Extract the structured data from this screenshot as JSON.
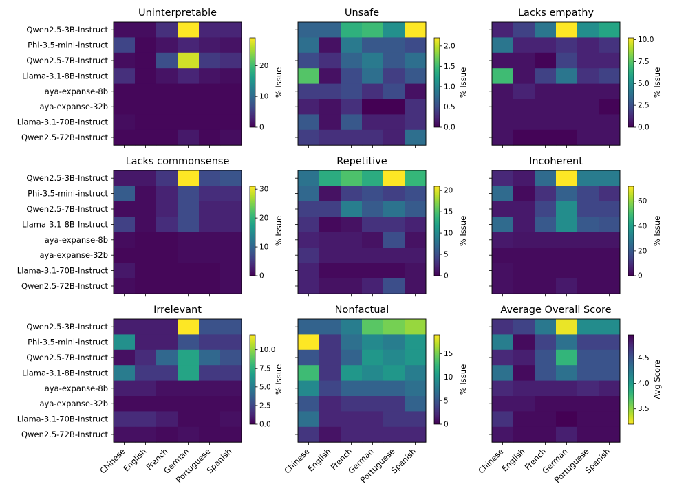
{
  "models": [
    "Qwen2.5-3B-Instruct",
    "Phi-3.5-mini-instruct",
    "Qwen2.5-7B-Instruct",
    "Llama-3.1-8B-Instruct",
    "aya-expanse-8b",
    "aya-expanse-32b",
    "Llama-3.1-70B-Instruct",
    "Qwen2.5-72B-Instruct"
  ],
  "languages": [
    "Chinese",
    "English",
    "French",
    "German",
    "Portuguese",
    "Spanish"
  ],
  "chart_data": [
    {
      "type": "heatmap",
      "title": "Uninterpretable",
      "colorbar_label": "% Issue",
      "cmap": "viridis",
      "vmin": 0,
      "vmax": 29,
      "colorbar_ticks": [
        0,
        10,
        20
      ],
      "values": [
        [
          1,
          1,
          4,
          29,
          3,
          3
        ],
        [
          6,
          0.5,
          1.5,
          3,
          2,
          1.5
        ],
        [
          1,
          0.5,
          7,
          27,
          5,
          4
        ],
        [
          4,
          0.5,
          1.5,
          3,
          1.5,
          1
        ],
        [
          0.5,
          0.5,
          0.5,
          0.5,
          0.5,
          0.5
        ],
        [
          0.5,
          0.5,
          0.5,
          0.5,
          0.5,
          0.5
        ],
        [
          1,
          0.5,
          0.5,
          0.5,
          0.5,
          0.5
        ],
        [
          0.5,
          0.5,
          0.5,
          2,
          0.5,
          1
        ]
      ]
    },
    {
      "type": "heatmap",
      "title": "Unsafe",
      "colorbar_label": "% Issue",
      "cmap": "viridis",
      "vmin": 0,
      "vmax": 2.2,
      "colorbar_ticks": [
        0.0,
        0.5,
        1.0,
        1.5,
        2.0
      ],
      "values": [
        [
          0.7,
          0.7,
          1.4,
          1.5,
          1.1,
          2.2
        ],
        [
          0.8,
          0.1,
          0.9,
          0.6,
          0.6,
          0.5
        ],
        [
          0.5,
          0.3,
          0.7,
          0.9,
          0.6,
          0.8
        ],
        [
          1.6,
          0.1,
          0.5,
          0.8,
          0.4,
          0.6
        ],
        [
          0.4,
          0.4,
          0.5,
          0.3,
          0.5,
          0.1
        ],
        [
          0.2,
          0.1,
          0.3,
          0.0,
          0.0,
          0.3
        ],
        [
          0.6,
          0.1,
          0.6,
          0.2,
          0.2,
          0.3
        ],
        [
          0.4,
          0.3,
          0.3,
          0.3,
          0.2,
          0.8
        ]
      ]
    },
    {
      "type": "heatmap",
      "title": "Lacks empathy",
      "colorbar_label": "% Issue",
      "cmap": "viridis",
      "vmin": 0,
      "vmax": 10.2,
      "colorbar_ticks": [
        0.0,
        2.5,
        5.0,
        7.5,
        10.0
      ],
      "values": [
        [
          1,
          2,
          4,
          10.2,
          5,
          6
        ],
        [
          4,
          1,
          1,
          1.5,
          1,
          1.5
        ],
        [
          0.5,
          0.5,
          0.1,
          2,
          1,
          1
        ],
        [
          7,
          0.5,
          2,
          4,
          1.5,
          2
        ],
        [
          0.5,
          1,
          0.5,
          0.5,
          0.5,
          0.5
        ],
        [
          0.5,
          0.5,
          0.5,
          0.5,
          0.5,
          0.1
        ],
        [
          0.5,
          0.5,
          0.5,
          0.5,
          0.5,
          0.5
        ],
        [
          0.5,
          0.1,
          0.1,
          0.1,
          0.5,
          0.5
        ]
      ]
    },
    {
      "type": "heatmap",
      "title": "Lacks commonsense",
      "colorbar_label": "% Issue",
      "cmap": "viridis",
      "vmin": 0,
      "vmax": 31,
      "colorbar_ticks": [
        0,
        10,
        20,
        30
      ],
      "values": [
        [
          2,
          2,
          5,
          31,
          7,
          8
        ],
        [
          9,
          1,
          3,
          7,
          4,
          4
        ],
        [
          1,
          1,
          3,
          7,
          3,
          3
        ],
        [
          6,
          1,
          4,
          7,
          3,
          3
        ],
        [
          1,
          0.5,
          0.5,
          1,
          1,
          1
        ],
        [
          0.5,
          0.5,
          0.5,
          1,
          1,
          1
        ],
        [
          2,
          0.5,
          0.5,
          0.5,
          0.5,
          1
        ],
        [
          1,
          0.5,
          0.5,
          0.5,
          0.5,
          1
        ]
      ]
    },
    {
      "type": "heatmap",
      "title": "Repetitive",
      "colorbar_label": "% Issue",
      "cmap": "viridis",
      "vmin": 0,
      "vmax": 21,
      "colorbar_ticks": [
        0,
        5,
        10,
        15,
        20
      ],
      "values": [
        [
          8,
          13,
          15,
          13,
          21,
          14
        ],
        [
          7,
          1,
          4,
          5,
          4,
          5
        ],
        [
          4,
          4,
          9,
          6,
          8,
          6
        ],
        [
          3,
          0.5,
          1,
          3,
          3,
          2
        ],
        [
          2,
          1.5,
          1.5,
          1,
          5,
          1
        ],
        [
          3,
          1.5,
          1.5,
          1.5,
          1.5,
          1.5
        ],
        [
          2,
          0.5,
          0.5,
          0.5,
          0.5,
          1
        ],
        [
          2,
          1,
          1,
          2,
          5,
          1
        ]
      ]
    },
    {
      "type": "heatmap",
      "title": "Incoherent",
      "colorbar_label": "% Issue",
      "cmap": "viridis",
      "vmin": 0,
      "vmax": 72,
      "colorbar_ticks": [
        0,
        20,
        40,
        60
      ],
      "values": [
        [
          8,
          5,
          25,
          72,
          30,
          30
        ],
        [
          25,
          2,
          10,
          22,
          15,
          10
        ],
        [
          5,
          5,
          15,
          35,
          15,
          15
        ],
        [
          25,
          5,
          20,
          35,
          20,
          18
        ],
        [
          5,
          4,
          4,
          4,
          4,
          4
        ],
        [
          2,
          2,
          2,
          2,
          2,
          2
        ],
        [
          3,
          2,
          2,
          2,
          2,
          2
        ],
        [
          3,
          2,
          2,
          5,
          2,
          2
        ]
      ]
    },
    {
      "type": "heatmap",
      "title": "Irrelevant",
      "colorbar_label": "% Issue",
      "cmap": "viridis",
      "vmin": 0,
      "vmax": 12,
      "colorbar_ticks": [
        0.0,
        2.5,
        5.0,
        7.5,
        10.0
      ],
      "values": [
        [
          1,
          1,
          1,
          12,
          3,
          3
        ],
        [
          6,
          1,
          1,
          3,
          2,
          2
        ],
        [
          0.5,
          1.5,
          4,
          7,
          4,
          3
        ],
        [
          5,
          2,
          2,
          7,
          2,
          2
        ],
        [
          1,
          1,
          0.5,
          0.5,
          0.5,
          0.5
        ],
        [
          0.3,
          0.3,
          0.3,
          0.3,
          0.3,
          0.3
        ],
        [
          1.5,
          1.5,
          1,
          0.3,
          0.3,
          0.5
        ],
        [
          0.5,
          0.5,
          0.3,
          0.5,
          0.3,
          0.3
        ]
      ]
    },
    {
      "type": "heatmap",
      "title": "Nonfactual",
      "colorbar_label": "% Issue",
      "cmap": "viridis",
      "vmin": 0,
      "vmax": 19,
      "colorbar_ticks": [
        0,
        5,
        10,
        15
      ],
      "values": [
        [
          6,
          6,
          8,
          14,
          15,
          16
        ],
        [
          19,
          3,
          7,
          9,
          8,
          10
        ],
        [
          5,
          3,
          6,
          10,
          9,
          10
        ],
        [
          13,
          3,
          10,
          9,
          10,
          8
        ],
        [
          9,
          4,
          6,
          6,
          6,
          7
        ],
        [
          5,
          2,
          3,
          3,
          3,
          6
        ],
        [
          7,
          2,
          2,
          2,
          3,
          3
        ],
        [
          3,
          1,
          2,
          2,
          2,
          2
        ]
      ]
    },
    {
      "type": "heatmap",
      "title": "Average Overall Score",
      "colorbar_label": "Avg Score",
      "cmap": "viridis_r",
      "vmin": 3.2,
      "vmax": 4.95,
      "colorbar_ticks": [
        3.5,
        4.0,
        4.5
      ],
      "values": [
        [
          4.7,
          4.6,
          4.25,
          3.25,
          4.1,
          4.1
        ],
        [
          4.2,
          4.9,
          4.6,
          4.3,
          4.6,
          4.6
        ],
        [
          4.75,
          4.8,
          4.5,
          3.8,
          4.5,
          4.5
        ],
        [
          4.3,
          4.9,
          4.5,
          4.3,
          4.5,
          4.5
        ],
        [
          4.75,
          4.8,
          4.8,
          4.8,
          4.75,
          4.8
        ],
        [
          4.85,
          4.85,
          4.9,
          4.9,
          4.9,
          4.9
        ],
        [
          4.7,
          4.9,
          4.9,
          4.95,
          4.9,
          4.9
        ],
        [
          4.85,
          4.9,
          4.9,
          4.8,
          4.9,
          4.9
        ]
      ]
    }
  ]
}
